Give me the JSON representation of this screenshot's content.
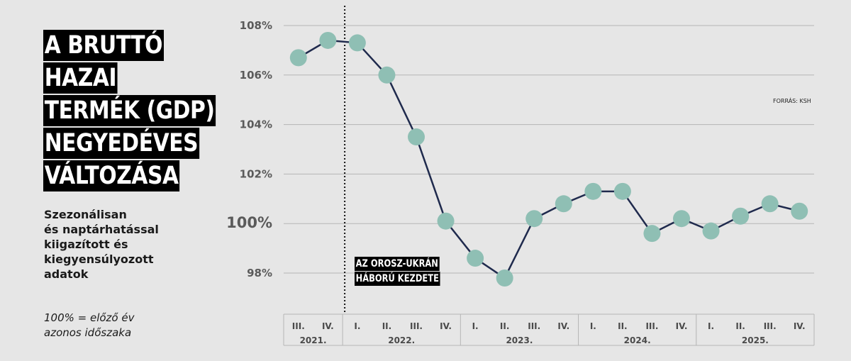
{
  "title_lines": [
    "A BRUTTÓ",
    "HAZAI",
    "TERMÉK (GDP)",
    "NEGYEDÉVES",
    "VÁLTOZÁSA"
  ],
  "subtitle_lines": [
    "Szezonálisan",
    "és naptárhatással",
    "kiigazított és",
    "kiegyensúlyozott",
    "adatok"
  ],
  "note_lines": [
    "100% = előző év",
    "azonos időszaka"
  ],
  "source": "FORRÁS: KSH",
  "annotation_lines": [
    "AZ OROSZ-UKRÁN",
    "HÁBORÚ KEZDETE"
  ],
  "colors": {
    "line": "#1f2a4d",
    "marker": "#8fbfb4",
    "grid": "#b5b5b5",
    "background": "#e6e6e6"
  },
  "chart_data": {
    "type": "line",
    "categories": [
      "III.",
      "IV.",
      "I.",
      "II.",
      "III.",
      "IV.",
      "I.",
      "II.",
      "III.",
      "IV.",
      "I.",
      "II.",
      "III.",
      "IV.",
      "I.",
      "II.",
      "III.",
      "IV."
    ],
    "years": [
      {
        "label": "2021.",
        "quarters": 2
      },
      {
        "label": "2022.",
        "quarters": 4
      },
      {
        "label": "2023.",
        "quarters": 4
      },
      {
        "label": "2024.",
        "quarters": 4
      },
      {
        "label": "2025.",
        "quarters": 4
      }
    ],
    "series": [
      {
        "values": [
          106.7,
          107.4,
          107.3,
          106.0,
          103.5,
          100.1,
          98.6,
          97.8,
          100.2,
          100.8,
          101.3,
          101.3,
          99.6,
          100.2,
          99.7,
          100.3,
          100.8,
          100.5
        ]
      }
    ],
    "yticks": [
      98,
      100,
      102,
      104,
      106,
      108
    ],
    "ytick_labels": [
      "98%",
      "100%",
      "102%",
      "104%",
      "106%",
      "108%"
    ],
    "ylim": [
      97,
      109
    ],
    "annotation_category_index": 2,
    "grid": "horizontal",
    "legend": "none"
  }
}
